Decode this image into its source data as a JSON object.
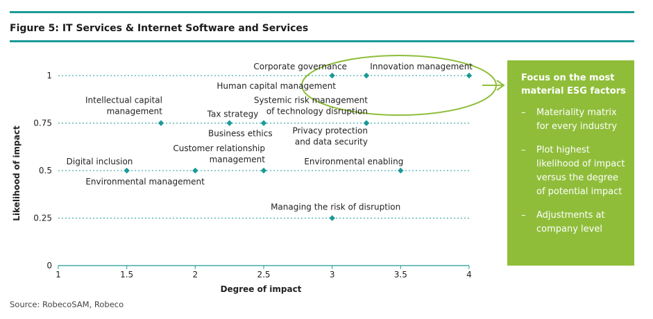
{
  "figure": {
    "title": "Figure 5: IT Services & Internet Software and Services",
    "source": "Source: RobecoSAM, Robeco"
  },
  "panel": {
    "title": "Focus on the most material ESG factors",
    "bullets": [
      "Materiality matrix for every industry",
      "Plot highest likelihood of impact versus the degree of potential impact",
      "Adjustments at company level"
    ],
    "dash": "–"
  },
  "chart_data": {
    "type": "scatter",
    "title": "Figure 5: IT Services & Internet Software and Services",
    "xlabel": "Degree of impact",
    "ylabel": "Likelihood of impact",
    "xlim": [
      1,
      4
    ],
    "ylim": [
      0,
      1
    ],
    "xticks": [
      "1",
      "1.5",
      "2",
      "2.5",
      "3",
      "3.5",
      "4"
    ],
    "yticks": [
      "0",
      "0.25",
      "0.5",
      "0.75",
      "1"
    ],
    "grid": "horizontal dotted",
    "points": [
      {
        "label": [
          "Corporate governance"
        ],
        "x": 3,
        "y": 1
      },
      {
        "label": [
          "Human capital management"
        ],
        "x": 3.25,
        "y": 1
      },
      {
        "label": [
          "Innovation management"
        ],
        "x": 4,
        "y": 1
      },
      {
        "label": [
          "Intellectual capital",
          "management"
        ],
        "x": 1.75,
        "y": 0.75
      },
      {
        "label": [
          "Tax strategy"
        ],
        "x": 2.25,
        "y": 0.75
      },
      {
        "label": [
          "Business ethics"
        ],
        "x": 2.5,
        "y": 0.75
      },
      {
        "label": [
          "Systemic risk management",
          "of technology disruption"
        ],
        "x": 3.25,
        "y": 0.75
      },
      {
        "label": [
          "Privacy protection",
          "and data security"
        ],
        "x": 3.25,
        "y": 0.75
      },
      {
        "label": [
          "Digital inclusion"
        ],
        "x": 1.5,
        "y": 0.5
      },
      {
        "label": [
          "Environmental management"
        ],
        "x": 2,
        "y": 0.5
      },
      {
        "label": [
          "Customer relationship",
          "management"
        ],
        "x": 2.5,
        "y": 0.5
      },
      {
        "label": [
          "Environmental enabling"
        ],
        "x": 3.5,
        "y": 0.5
      },
      {
        "label": [
          "Managing the risk of disruption"
        ],
        "x": 3,
        "y": 0.25
      }
    ],
    "highlight": "ellipse around the most material factors at likelihood 1"
  }
}
